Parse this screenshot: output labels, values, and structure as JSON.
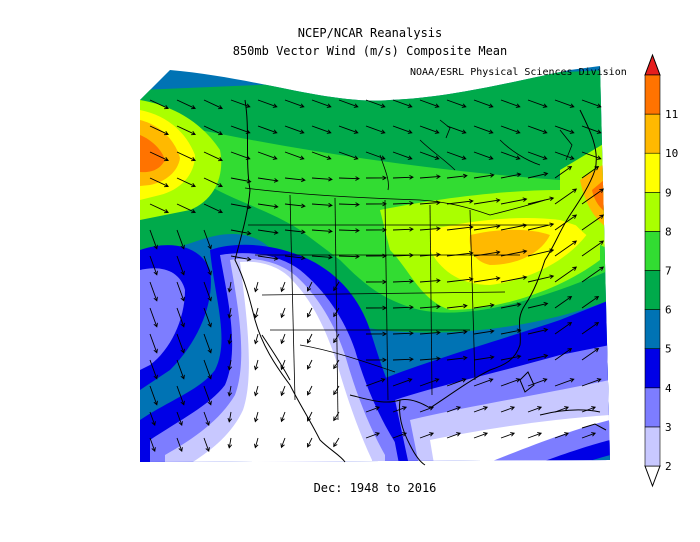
{
  "title_line1": "NCEP/NCAR Reanalysis",
  "title_line2": "850mb Vector Wind (m/s) Composite Mean",
  "credit": "NOAA/ESRL Physical Sciences Division",
  "period": "Dec: 1948 to 2016",
  "colorbar": {
    "labels": [
      "2",
      "3",
      "4",
      "5",
      "6",
      "7",
      "8",
      "9",
      "10",
      "11"
    ],
    "colors": [
      "#ffffff",
      "#c8c8ff",
      "#7d7dff",
      "#0000e6",
      "#0073b4",
      "#00aa4b",
      "#32dc32",
      "#aaff00",
      "#ffff00",
      "#ffb900",
      "#ff7300",
      "#e61e1e"
    ]
  }
}
